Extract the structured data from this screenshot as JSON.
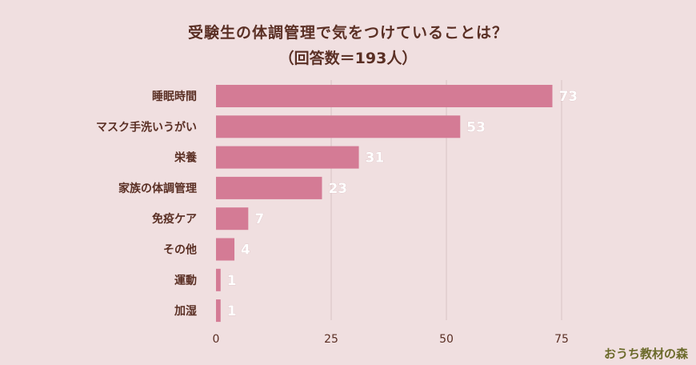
{
  "chart_data": {
    "type": "bar",
    "orientation": "horizontal",
    "title": "受験生の体調管理で気をつけていることは？",
    "subtitle": "（回答数＝193人）",
    "categories": [
      "睡眠時間",
      "マスク手洗いうがい",
      "栄養",
      "家族の体調管理",
      "免疫ケア",
      "その他",
      "運動",
      "加湿"
    ],
    "values": [
      73,
      53,
      31,
      23,
      7,
      4,
      1,
      1
    ],
    "xlim": [
      0,
      75
    ],
    "xticks": [
      0,
      25,
      50,
      75
    ],
    "grid": true,
    "bar_color": "#d47b95",
    "text_color": "#5a2f24"
  },
  "watermark": "おうち教材の森"
}
